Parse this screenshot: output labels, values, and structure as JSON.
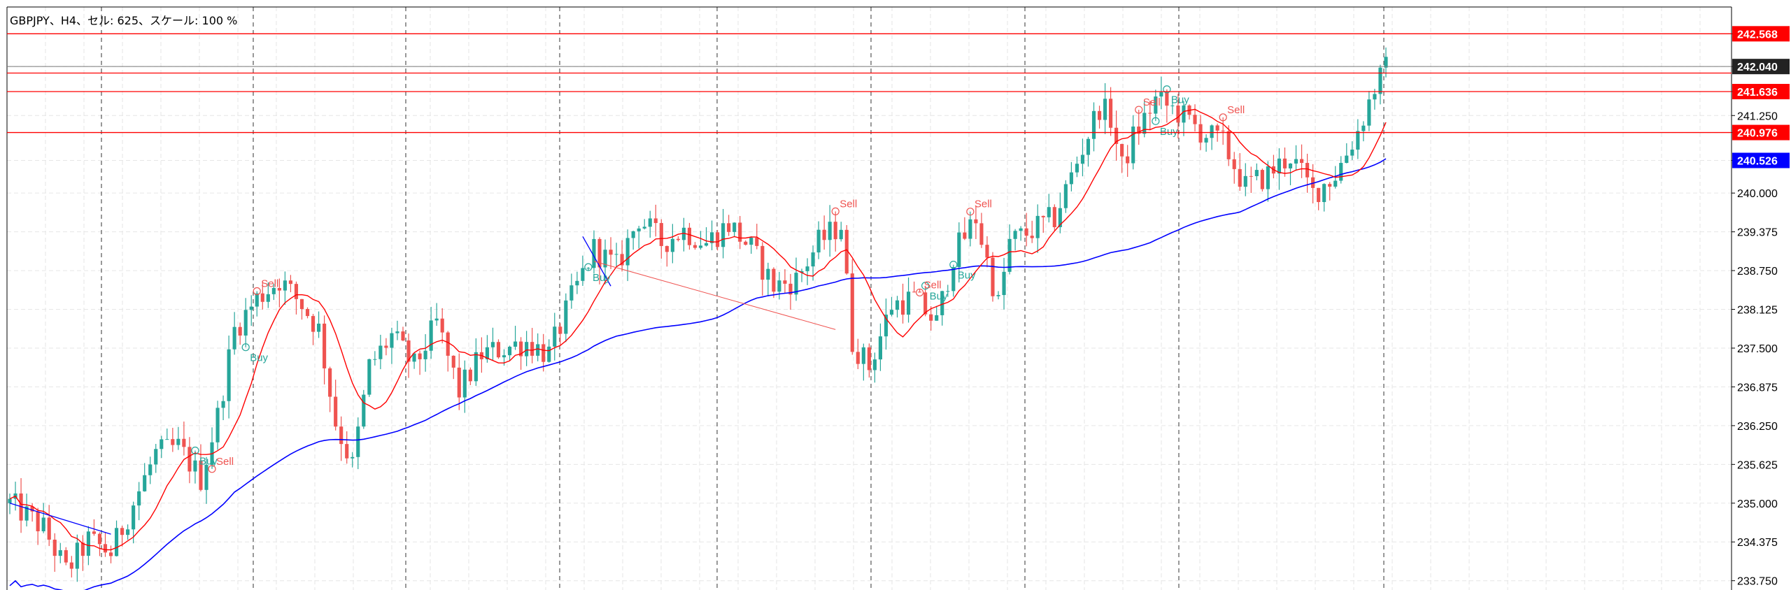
{
  "info": {
    "header": "GBPJPY、H4、セル: 625、スケール: 100 %"
  },
  "colors": {
    "background": "#ffffff",
    "bull": "#26a69a",
    "bear": "#ef5350",
    "ma_fast": "#ff0000",
    "ma_slow": "#0000ff",
    "level_line": "#ff0000",
    "current_price_line": "#777777",
    "grid": "#e6e6e6",
    "vgrid": "#555555",
    "signal": "#26a69a",
    "signal_sell": "#ef5350",
    "trend_line": "#0000ff"
  },
  "chart_data": {
    "type": "candlestick",
    "symbol": "GBPJPY",
    "timeframe": "H4",
    "ylim": [
      233.6,
      243.0
    ],
    "x_count": 200,
    "grid": true,
    "y_ticks": [
      "242.568",
      "242.040",
      "241.636",
      "241.250",
      "240.976",
      "240.526",
      "240.000",
      "239.375",
      "238.750",
      "238.125",
      "237.500",
      "236.875",
      "236.250",
      "235.625",
      "235.000",
      "234.375",
      "233.750"
    ],
    "y_tick_values": [
      242.568,
      242.04,
      241.636,
      241.25,
      240.976,
      240.526,
      240.0,
      239.375,
      238.75,
      238.125,
      237.5,
      236.875,
      236.25,
      235.625,
      235.0,
      234.375,
      233.75
    ],
    "price_boxes": [
      {
        "label": "242.568",
        "value": 242.568,
        "type": "level"
      },
      {
        "label": "242.040",
        "value": 242.04,
        "type": "current"
      },
      {
        "label": "241.636",
        "value": 241.636,
        "type": "level"
      },
      {
        "label": "240.976",
        "value": 240.976,
        "type": "level"
      },
      {
        "label": "240.526",
        "value": 240.526,
        "type": "ma"
      }
    ],
    "levels": [
      242.568,
      241.935,
      241.636,
      240.976
    ],
    "current_price": 242.04,
    "anchors": [
      [
        0,
        235.0
      ],
      [
        6,
        234.6
      ],
      [
        10,
        233.9
      ],
      [
        14,
        234.4
      ],
      [
        18,
        234.2
      ],
      [
        22,
        235.0
      ],
      [
        26,
        235.8
      ],
      [
        30,
        235.9
      ],
      [
        34,
        235.4
      ],
      [
        37,
        236.4
      ],
      [
        40,
        237.8
      ],
      [
        44,
        238.3
      ],
      [
        48,
        238.6
      ],
      [
        52,
        238.2
      ],
      [
        55,
        237.8
      ],
      [
        58,
        236.3
      ],
      [
        61,
        235.6
      ],
      [
        64,
        237.2
      ],
      [
        68,
        237.7
      ],
      [
        72,
        237.2
      ],
      [
        76,
        237.9
      ],
      [
        80,
        236.8
      ],
      [
        84,
        237.4
      ],
      [
        88,
        237.5
      ],
      [
        92,
        237.6
      ],
      [
        96,
        237.4
      ],
      [
        100,
        238.3
      ],
      [
        104,
        239.1
      ],
      [
        108,
        238.8
      ],
      [
        112,
        239.6
      ],
      [
        116,
        239.2
      ],
      [
        120,
        239.4
      ],
      [
        124,
        239.2
      ],
      [
        128,
        239.5
      ],
      [
        132,
        239.1
      ],
      [
        136,
        238.5
      ],
      [
        140,
        238.6
      ],
      [
        144,
        239.2
      ],
      [
        148,
        239.5
      ],
      [
        150,
        237.6
      ],
      [
        153,
        237.2
      ],
      [
        157,
        238.2
      ],
      [
        161,
        238.3
      ],
      [
        165,
        237.9
      ],
      [
        168,
        239.0
      ],
      [
        172,
        239.6
      ],
      [
        176,
        238.2
      ],
      [
        178,
        239.2
      ],
      [
        182,
        239.4
      ],
      [
        186,
        239.6
      ],
      [
        190,
        240.5
      ],
      [
        194,
        241.4
      ],
      [
        196,
        241.2
      ],
      [
        198,
        240.4
      ],
      [
        200,
        240.9
      ],
      [
        204,
        241.5
      ],
      [
        208,
        241.3
      ],
      [
        212,
        241.0
      ],
      [
        216,
        240.8
      ],
      [
        220,
        240.1
      ],
      [
        224,
        240.3
      ],
      [
        228,
        240.6
      ],
      [
        232,
        240.0
      ],
      [
        236,
        240.3
      ],
      [
        240,
        241.0
      ],
      [
        243,
        241.7
      ],
      [
        245,
        242.0
      ]
    ],
    "signals": [
      {
        "kind": "Buy",
        "i": 42,
        "low": true
      },
      {
        "kind": "Sell",
        "i": 44,
        "low": false
      },
      {
        "kind": "Buy",
        "i": 33,
        "low": false
      },
      {
        "kind": "Sell",
        "i": 36,
        "low": true
      },
      {
        "kind": "Buy",
        "i": 103,
        "low": false
      },
      {
        "kind": "Sell",
        "i": 147,
        "low": false
      },
      {
        "kind": "Buy",
        "i": 163,
        "low": false
      },
      {
        "kind": "Sell",
        "i": 162,
        "low": true
      },
      {
        "kind": "Buy",
        "i": 168,
        "low": false
      },
      {
        "kind": "Sell",
        "i": 171,
        "low": false
      },
      {
        "kind": "Buy",
        "i": 204,
        "low": true
      },
      {
        "kind": "Sell",
        "i": 201,
        "low": false
      },
      {
        "kind": "Buy",
        "i": 206,
        "low": false
      },
      {
        "kind": "Sell",
        "i": 216,
        "low": false
      }
    ]
  }
}
